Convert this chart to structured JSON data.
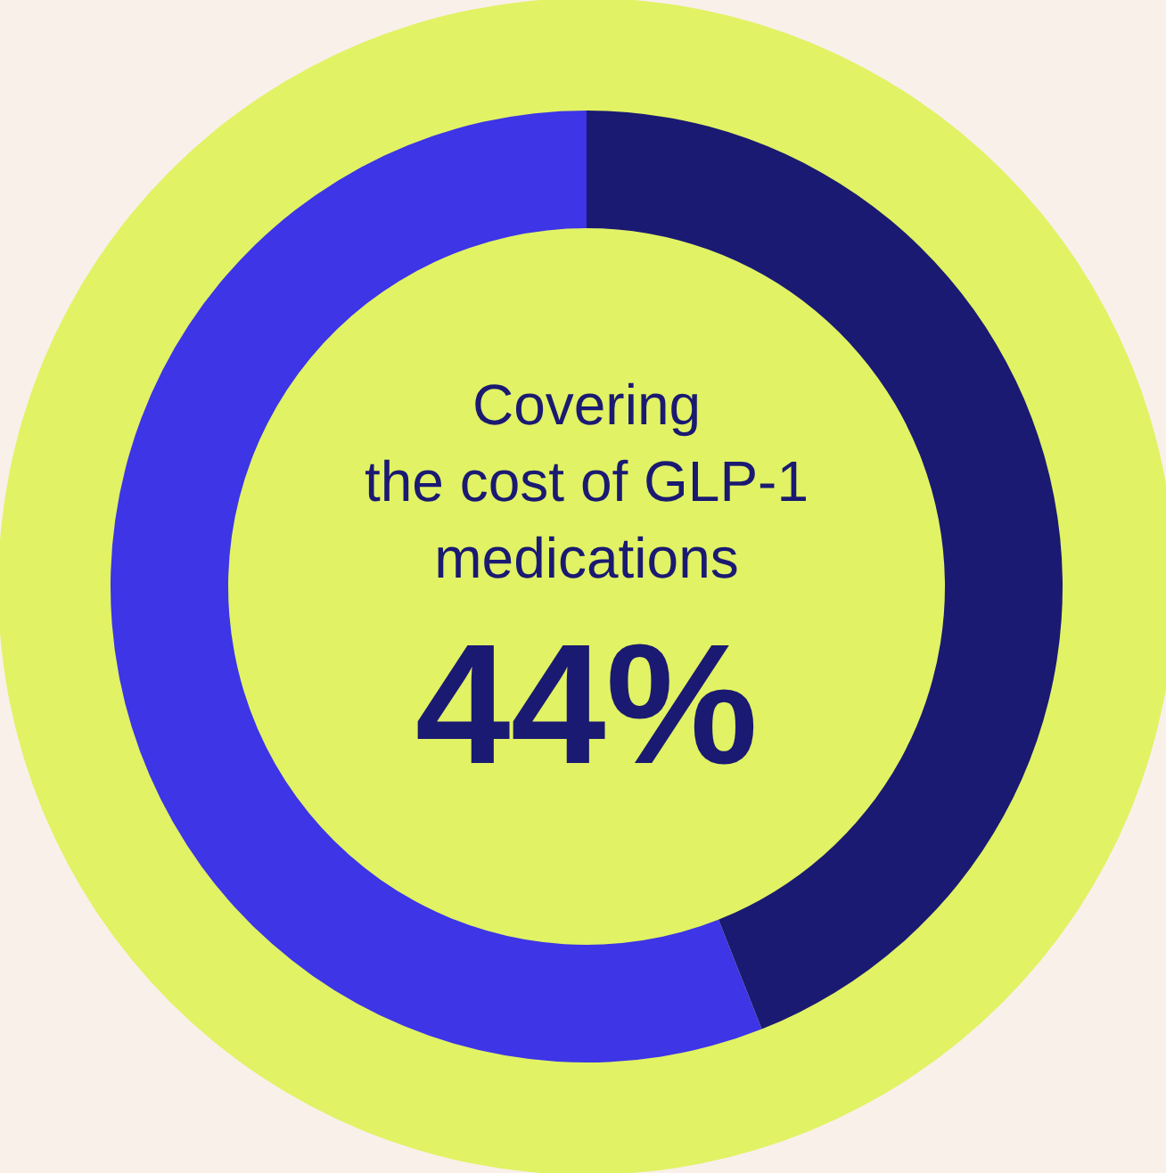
{
  "chart_data": {
    "type": "donut",
    "title": "Covering the cost of GLP-1 medications",
    "categories": [
      null,
      null
    ],
    "values": [
      44,
      56
    ],
    "colors": [
      "#1a1a72",
      "#3d35e6"
    ],
    "annotations": [
      "44%"
    ]
  }
}
